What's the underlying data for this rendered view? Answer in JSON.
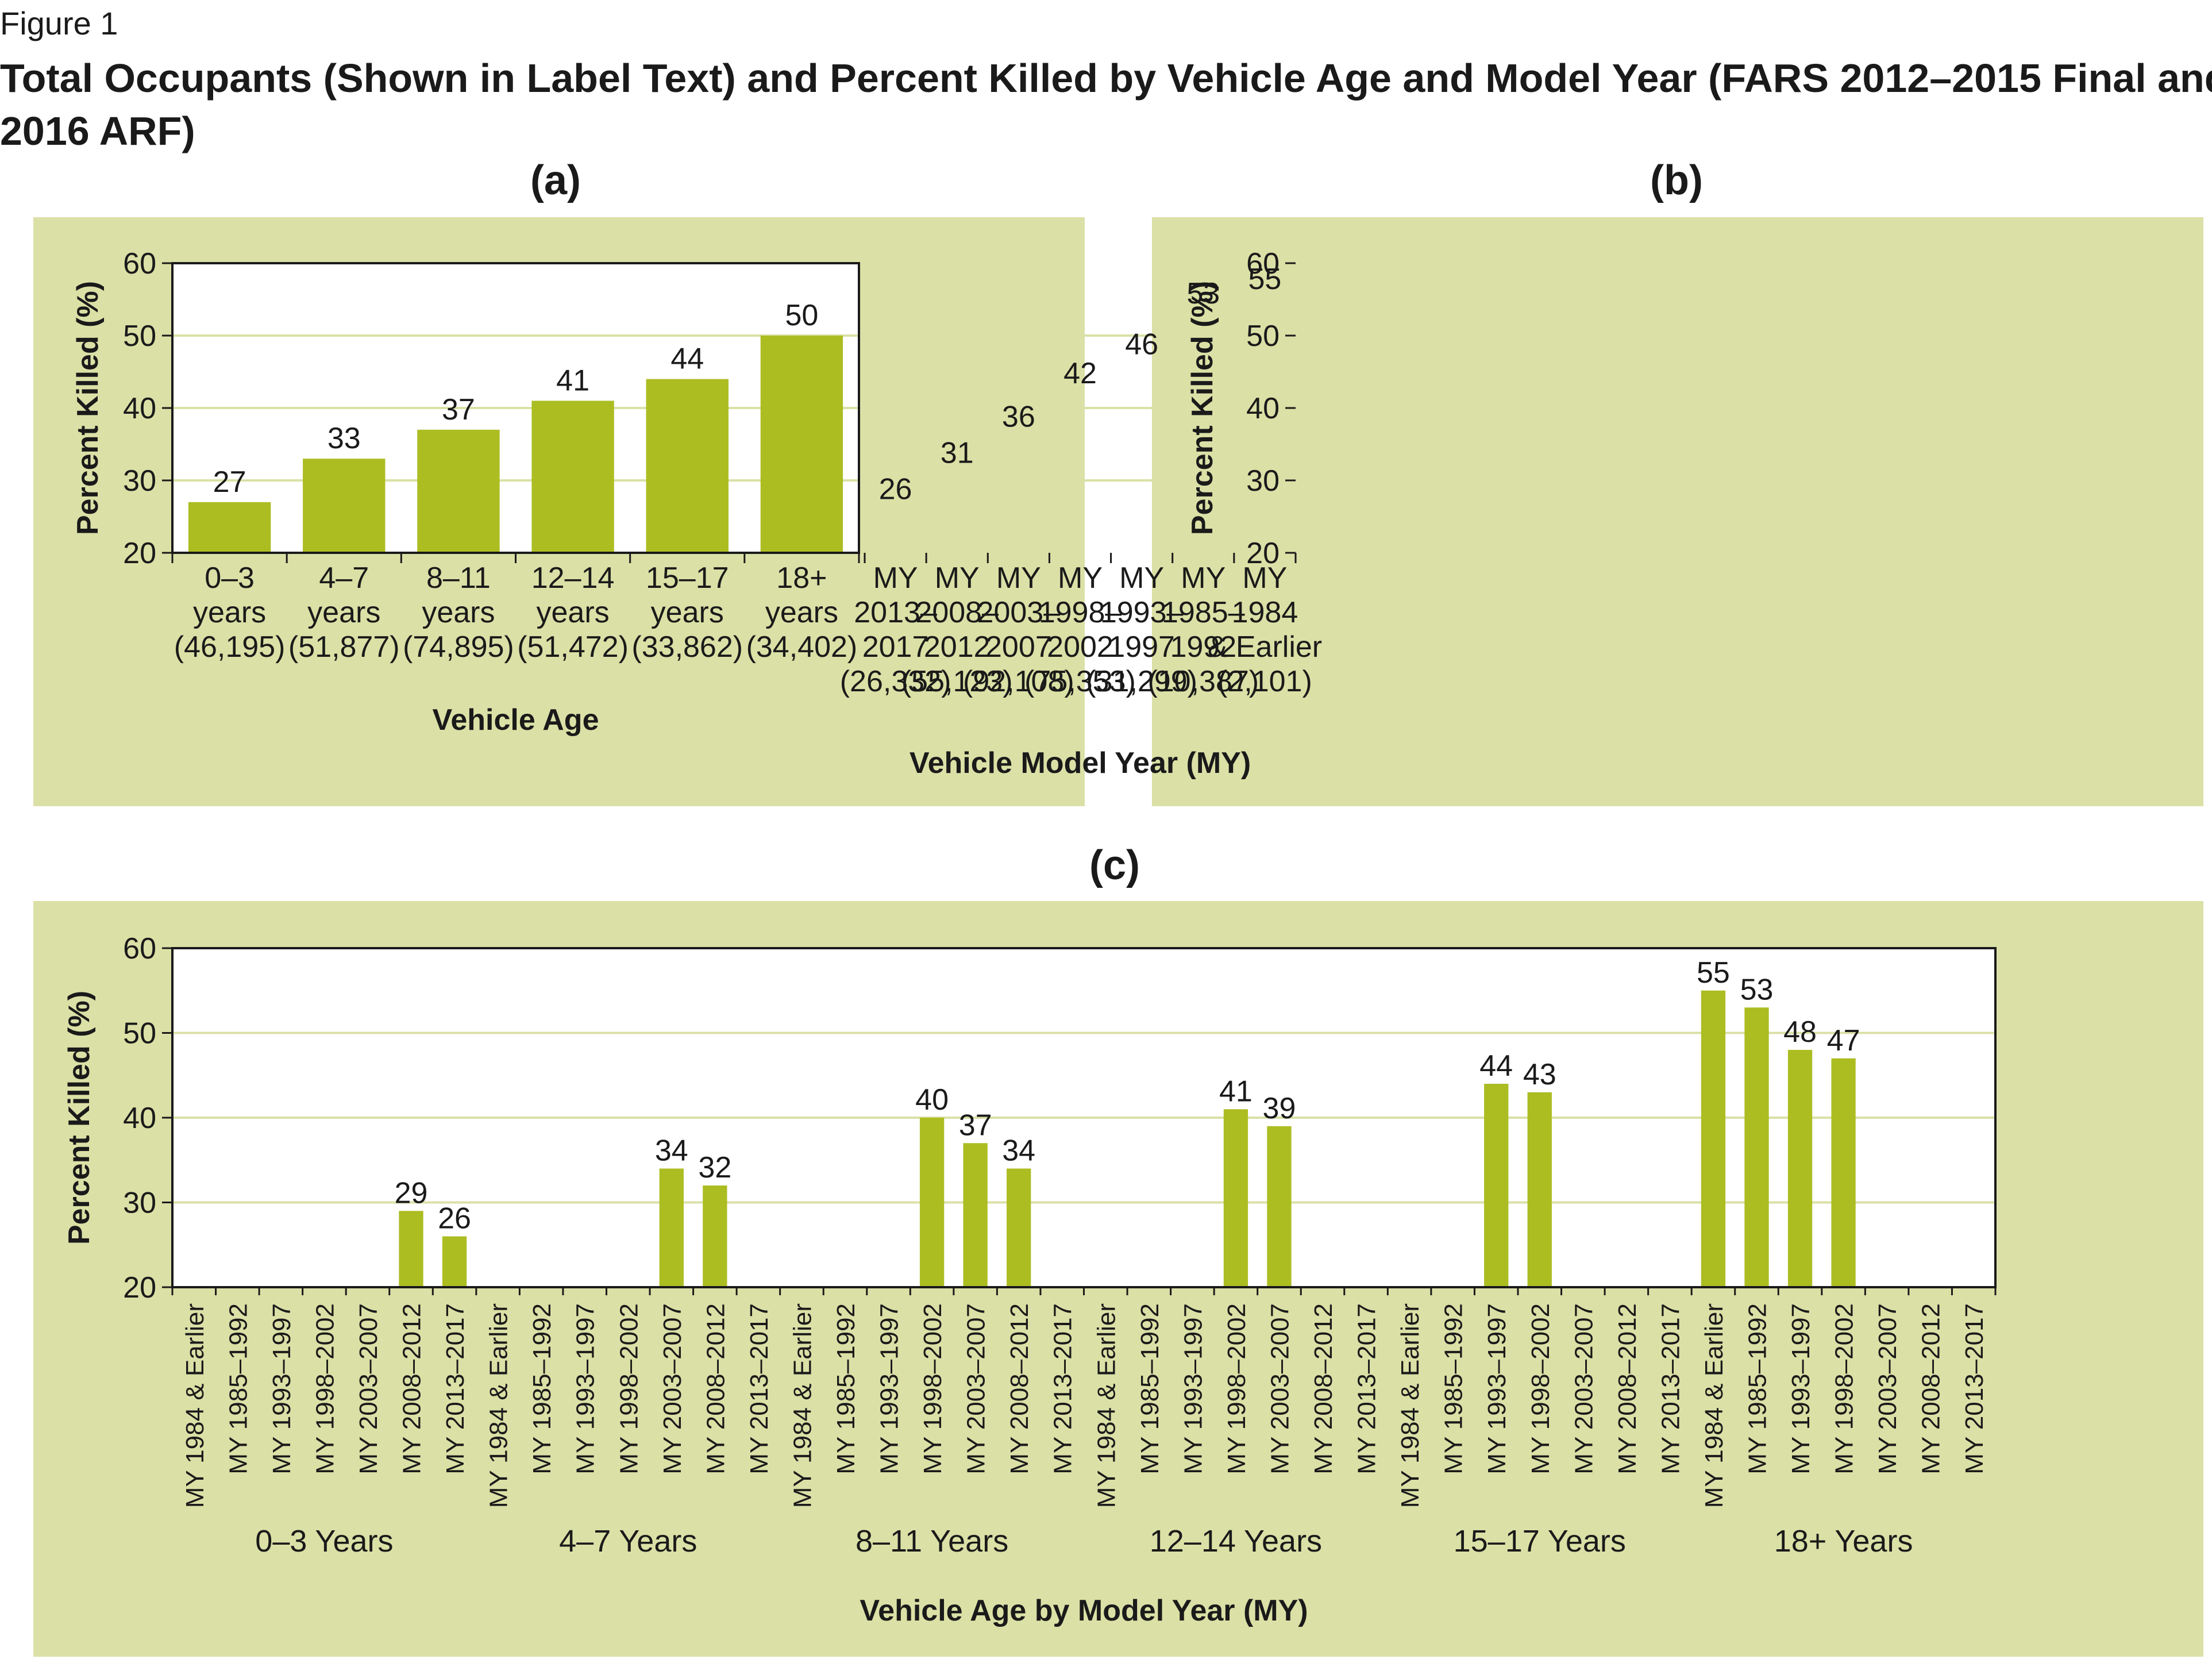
{
  "figure_label": "Figure 1",
  "title": "Total Occupants (Shown in Label Text) and Percent Killed by Vehicle Age and Model Year (FARS 2012–2015 Final and 2016 ARF)",
  "title_lines": [
    "Total Occupants (Shown in Label Text) and Percent Killed by Vehicle Age and Model Year (FARS 2012–2015 Final and",
    "2016 ARF)"
  ],
  "colors": {
    "panel_bg": "#dbe0a6",
    "bar": "#acbd22",
    "grid": "#dbe0a6",
    "axis": "#1a1a1a"
  },
  "chart_data": [
    {
      "panel": "(a)",
      "type": "bar",
      "ylabel": "Percent Killed (%)",
      "xlabel": "Vehicle Age",
      "ylim": [
        20,
        60
      ],
      "yticks": [
        20,
        30,
        40,
        50,
        60
      ],
      "grid": true,
      "categories": [
        [
          "0–3",
          "years",
          "(46,195)"
        ],
        [
          "4–7",
          "years",
          "(51,877)"
        ],
        [
          "8–11",
          "years",
          "(74,895)"
        ],
        [
          "12–14",
          "years",
          "(51,472)"
        ],
        [
          "15–17",
          "years",
          "(33,862)"
        ],
        [
          "18+",
          "years",
          "(34,402)"
        ]
      ],
      "values": [
        27,
        33,
        37,
        41,
        44,
        50
      ]
    },
    {
      "panel": "(b)",
      "type": "bar",
      "ylabel": "Percent Killed (%)",
      "xlabel": "Vehicle Model Year (MY)",
      "ylim": [
        20,
        60
      ],
      "yticks": [
        20,
        30,
        40,
        50,
        60
      ],
      "grid": true,
      "categories": [
        [
          "MY",
          "1984",
          "& Earlier",
          "(2,101)"
        ],
        [
          "MY",
          "1985–",
          "1992",
          "(10,387)"
        ],
        [
          "MY",
          "1993–",
          "1997",
          "(31,299)"
        ],
        [
          "MY",
          "1998–",
          "2002",
          "(75,353)"
        ],
        [
          "MY",
          "2003–",
          "2007",
          "(92,108)"
        ],
        [
          "MY",
          "2008–",
          "2012",
          "(55,123)"
        ],
        [
          "MY",
          "2013–",
          "2017",
          "(26,332)"
        ]
      ],
      "values": [
        55,
        53,
        46,
        42,
        36,
        31,
        26
      ]
    },
    {
      "panel": "(c)",
      "type": "bar",
      "ylabel": "Percent Killed (%)",
      "xlabel": "Vehicle Age by Model Year (MY)",
      "ylim": [
        20,
        60
      ],
      "yticks": [
        20,
        30,
        40,
        50,
        60
      ],
      "grid": true,
      "subcategories": [
        "MY 1984 & Earlier",
        "MY 1985–1992",
        "MY 1993–1997",
        "MY 1998–2002",
        "MY 2003–2007",
        "MY 2008–2012",
        "MY 2013–2017"
      ],
      "groups": [
        {
          "name": "0–3 Years",
          "values": [
            null,
            null,
            null,
            null,
            null,
            29,
            26
          ]
        },
        {
          "name": "4–7 Years",
          "values": [
            null,
            null,
            null,
            null,
            34,
            32,
            null
          ]
        },
        {
          "name": "8–11 Years",
          "values": [
            null,
            null,
            null,
            40,
            37,
            34,
            null
          ]
        },
        {
          "name": "12–14 Years",
          "values": [
            null,
            null,
            null,
            41,
            39,
            null,
            null
          ]
        },
        {
          "name": "15–17 Years",
          "values": [
            null,
            null,
            44,
            43,
            null,
            null,
            null
          ]
        },
        {
          "name": "18+ Years",
          "values": [
            55,
            53,
            48,
            47,
            null,
            null,
            null
          ]
        }
      ]
    }
  ]
}
